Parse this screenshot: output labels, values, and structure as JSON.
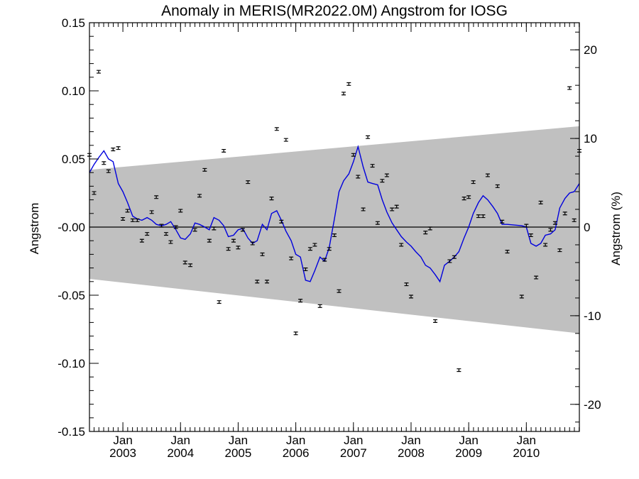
{
  "chart_data": {
    "type": "scatter",
    "title": "Anomaly in MERIS(MR2022.0M) Angstrom for IOSG",
    "ylabel": "Angstrom",
    "y2label": "Angstrom (%)",
    "xlim": [
      2002.42,
      2010.92
    ],
    "ylim": [
      -0.15,
      0.15
    ],
    "y2lim": [
      -23.06,
      23.06
    ],
    "y_ticks": [
      0.15,
      0.1,
      0.05,
      0.0,
      -0.05,
      -0.1,
      -0.15
    ],
    "y_tick_labels": [
      "0.15",
      "0.10",
      "0.05",
      "-0.00",
      "-0.05",
      "-0.10",
      "-0.15"
    ],
    "y2_ticks": [
      20,
      10,
      0,
      -10,
      -20
    ],
    "y2_tick_labels": [
      "20",
      "10",
      "0",
      "-10",
      "-20"
    ],
    "x_ticks": [
      {
        "x": 2003.0,
        "month": "Jan",
        "year": "2003"
      },
      {
        "x": 2004.0,
        "month": "Jan",
        "year": "2004"
      },
      {
        "x": 2005.0,
        "month": "Jan",
        "year": "2005"
      },
      {
        "x": 2006.0,
        "month": "Jan",
        "year": "2006"
      },
      {
        "x": 2007.0,
        "month": "Jan",
        "year": "2007"
      },
      {
        "x": 2008.0,
        "month": "Jan",
        "year": "2008"
      },
      {
        "x": 2009.0,
        "month": "Jan",
        "year": "2009"
      },
      {
        "x": 2010.0,
        "month": "Jan",
        "year": "2010"
      }
    ],
    "band": {
      "x": [
        2002.42,
        2010.92
      ],
      "upper": [
        0.042,
        0.074
      ],
      "lower": [
        -0.038,
        -0.078
      ],
      "color": "#c0c0c0"
    },
    "zero_line": 0.0,
    "points": {
      "color": "#000000",
      "error": 0.001,
      "x": [
        2002.42,
        2002.5,
        2002.58,
        2002.67,
        2002.75,
        2002.83,
        2002.92,
        2003.0,
        2003.08,
        2003.17,
        2003.25,
        2003.33,
        2003.42,
        2003.5,
        2003.58,
        2003.67,
        2003.75,
        2003.83,
        2003.92,
        2004.0,
        2004.08,
        2004.17,
        2004.25,
        2004.33,
        2004.42,
        2004.5,
        2004.58,
        2004.67,
        2004.75,
        2004.83,
        2004.92,
        2005.0,
        2005.08,
        2005.17,
        2005.25,
        2005.33,
        2005.42,
        2005.5,
        2005.58,
        2005.67,
        2005.75,
        2005.83,
        2005.92,
        2006.0,
        2006.08,
        2006.17,
        2006.25,
        2006.33,
        2006.42,
        2006.5,
        2006.58,
        2006.67,
        2006.75,
        2006.83,
        2006.92,
        2007.0,
        2007.08,
        2007.17,
        2007.25,
        2007.33,
        2007.42,
        2007.5,
        2007.58,
        2007.67,
        2007.75,
        2007.83,
        2007.92,
        2008.0,
        2008.25,
        2008.33,
        2008.42,
        2008.67,
        2008.75,
        2008.83,
        2008.92,
        2009.0,
        2009.08,
        2009.17,
        2009.25,
        2009.33,
        2009.5,
        2009.58,
        2009.67,
        2009.92,
        2010.0,
        2010.08,
        2010.17,
        2010.25,
        2010.33,
        2010.42,
        2010.5,
        2010.58,
        2010.67,
        2010.75,
        2010.83,
        2010.92
      ],
      "y": [
        0.053,
        0.025,
        0.114,
        0.047,
        0.041,
        0.057,
        0.058,
        0.006,
        0.012,
        0.005,
        0.005,
        -0.01,
        -0.005,
        0.011,
        0.022,
        0.001,
        -0.005,
        -0.011,
        0.0,
        0.012,
        -0.026,
        -0.028,
        -0.002,
        0.023,
        0.042,
        -0.01,
        -0.001,
        -0.055,
        0.056,
        -0.016,
        -0.01,
        -0.015,
        -0.002,
        0.033,
        -0.012,
        -0.04,
        -0.02,
        -0.04,
        0.021,
        0.072,
        0.004,
        0.064,
        -0.023,
        -0.078,
        -0.054,
        -0.031,
        -0.016,
        -0.013,
        -0.058,
        -0.024,
        -0.016,
        -0.006,
        -0.047,
        0.098,
        0.105,
        0.053,
        0.037,
        0.013,
        0.066,
        0.045,
        0.003,
        0.034,
        0.038,
        0.013,
        0.015,
        -0.013,
        -0.042,
        -0.051,
        -0.004,
        -0.001,
        -0.069,
        -0.025,
        -0.022,
        -0.105,
        0.021,
        0.022,
        0.033,
        0.008,
        0.008,
        0.038,
        0.03,
        0.004,
        -0.018,
        -0.051,
        0.001,
        -0.006,
        -0.037,
        0.018,
        -0.013,
        -0.002,
        0.003,
        -0.017,
        0.01,
        0.102,
        0.005,
        0.056
      ]
    },
    "smoothed_line": {
      "color": "#0000dd",
      "x": [
        2002.42,
        2002.5,
        2002.58,
        2002.67,
        2002.75,
        2002.83,
        2002.92,
        2003.0,
        2003.08,
        2003.17,
        2003.25,
        2003.33,
        2003.42,
        2003.5,
        2003.58,
        2003.67,
        2003.75,
        2003.83,
        2003.92,
        2004.0,
        2004.08,
        2004.17,
        2004.25,
        2004.33,
        2004.42,
        2004.5,
        2004.58,
        2004.67,
        2004.75,
        2004.83,
        2004.92,
        2005.0,
        2005.08,
        2005.17,
        2005.25,
        2005.33,
        2005.42,
        2005.5,
        2005.58,
        2005.67,
        2005.75,
        2005.83,
        2005.92,
        2006.0,
        2006.08,
        2006.17,
        2006.25,
        2006.33,
        2006.42,
        2006.5,
        2006.58,
        2006.67,
        2006.75,
        2006.83,
        2006.92,
        2007.0,
        2007.08,
        2007.17,
        2007.25,
        2007.33,
        2007.42,
        2007.5,
        2007.58,
        2007.67,
        2007.75,
        2007.83,
        2007.92,
        2008.0,
        2008.08,
        2008.17,
        2008.25,
        2008.33,
        2008.42,
        2008.5,
        2008.58,
        2008.67,
        2008.75,
        2008.83,
        2008.92,
        2009.0,
        2009.08,
        2009.17,
        2009.25,
        2009.33,
        2009.42,
        2009.5,
        2009.58,
        2009.67,
        2009.92,
        2010.0,
        2010.08,
        2010.17,
        2010.25,
        2010.33,
        2010.42,
        2010.5,
        2010.58,
        2010.67,
        2010.75,
        2010.83,
        2010.92
      ],
      "y": [
        0.04,
        0.046,
        0.051,
        0.056,
        0.05,
        0.048,
        0.032,
        0.026,
        0.018,
        0.008,
        0.006,
        0.005,
        0.007,
        0.005,
        0.002,
        0.001,
        0.002,
        0.004,
        -0.002,
        -0.008,
        -0.009,
        -0.005,
        0.003,
        0.002,
        0.0,
        -0.002,
        0.007,
        0.005,
        0.001,
        -0.007,
        -0.006,
        -0.002,
        -0.001,
        -0.008,
        -0.012,
        -0.01,
        0.002,
        -0.002,
        0.01,
        0.012,
        0.005,
        -0.003,
        -0.01,
        -0.02,
        -0.022,
        -0.039,
        -0.04,
        -0.032,
        -0.022,
        -0.025,
        -0.015,
        0.006,
        0.026,
        0.034,
        0.039,
        0.048,
        0.059,
        0.044,
        0.033,
        0.032,
        0.031,
        0.02,
        0.011,
        0.003,
        -0.002,
        -0.007,
        -0.011,
        -0.014,
        -0.018,
        -0.022,
        -0.028,
        -0.03,
        -0.035,
        -0.04,
        -0.028,
        -0.025,
        -0.022,
        -0.018,
        -0.008,
        0.0,
        0.01,
        0.018,
        0.023,
        0.02,
        0.015,
        0.01,
        0.002,
        0.002,
        0.001,
        0.0,
        -0.012,
        -0.014,
        -0.012,
        -0.006,
        -0.005,
        -0.002,
        0.014,
        0.021,
        0.025,
        0.026,
        0.032
      ]
    }
  }
}
